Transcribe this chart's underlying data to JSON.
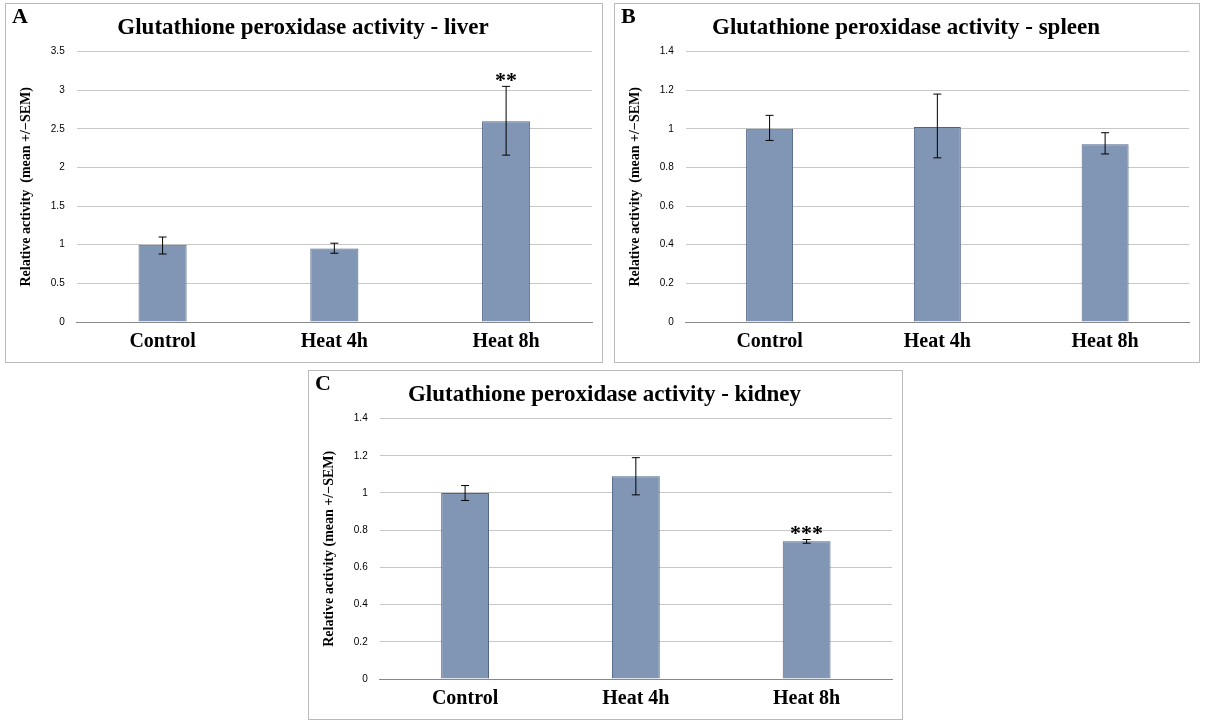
{
  "chart_data": [
    {
      "type": "bar",
      "title": "Glutathione peroxidase activity - liver",
      "ylabel": "Relative activity  (mean +/−SEM)",
      "categories": [
        "Control",
        "Heat 4h",
        "Heat 8h"
      ],
      "values": [
        1.0,
        0.95,
        2.6
      ],
      "errors": [
        [
          0.88,
          1.1
        ],
        [
          0.89,
          1.02
        ],
        [
          2.16,
          3.05
        ]
      ],
      "color": "#8096b4",
      "ylim": [
        0,
        3.5
      ],
      "yticks": [
        0,
        0.5,
        1,
        1.5,
        2,
        2.5,
        3,
        3.5
      ],
      "grid": "y",
      "annotations": [
        "A",
        {
          "text": "**",
          "x": "Heat 8h",
          "y": 3.05
        }
      ]
    },
    {
      "type": "bar",
      "title": "Glutathione peroxidase activity - spleen",
      "ylabel": "Relative activity  (mean +/−SEM)",
      "categories": [
        "Control",
        "Heat 4h",
        "Heat 8h"
      ],
      "values": [
        1.0,
        1.01,
        0.92
      ],
      "errors": [
        [
          0.94,
          1.07
        ],
        [
          0.85,
          1.18
        ],
        [
          0.87,
          0.98
        ]
      ],
      "color": "#8096b4",
      "ylim": [
        0,
        1.4
      ],
      "yticks": [
        0,
        0.2,
        0.4,
        0.6,
        0.8,
        1,
        1.2,
        1.4
      ],
      "grid": "y",
      "annotations": [
        "B"
      ]
    },
    {
      "type": "bar",
      "title": "Glutathione peroxidase activity - kidney",
      "ylabel": "Relative activity (mean +/−SEM)",
      "categories": [
        "Control",
        "Heat 4h",
        "Heat 8h"
      ],
      "values": [
        1.0,
        1.09,
        0.74
      ],
      "errors": [
        [
          0.96,
          1.04
        ],
        [
          0.99,
          1.19
        ],
        [
          0.73,
          0.75
        ]
      ],
      "color": "#8096b4",
      "ylim": [
        0,
        1.4
      ],
      "yticks": [
        0,
        0.2,
        0.4,
        0.6,
        0.8,
        1,
        1.2,
        1.4
      ],
      "grid": "y",
      "annotations": [
        "C",
        {
          "text": "***",
          "x": "Heat 8h",
          "y": 0.75
        }
      ]
    }
  ]
}
